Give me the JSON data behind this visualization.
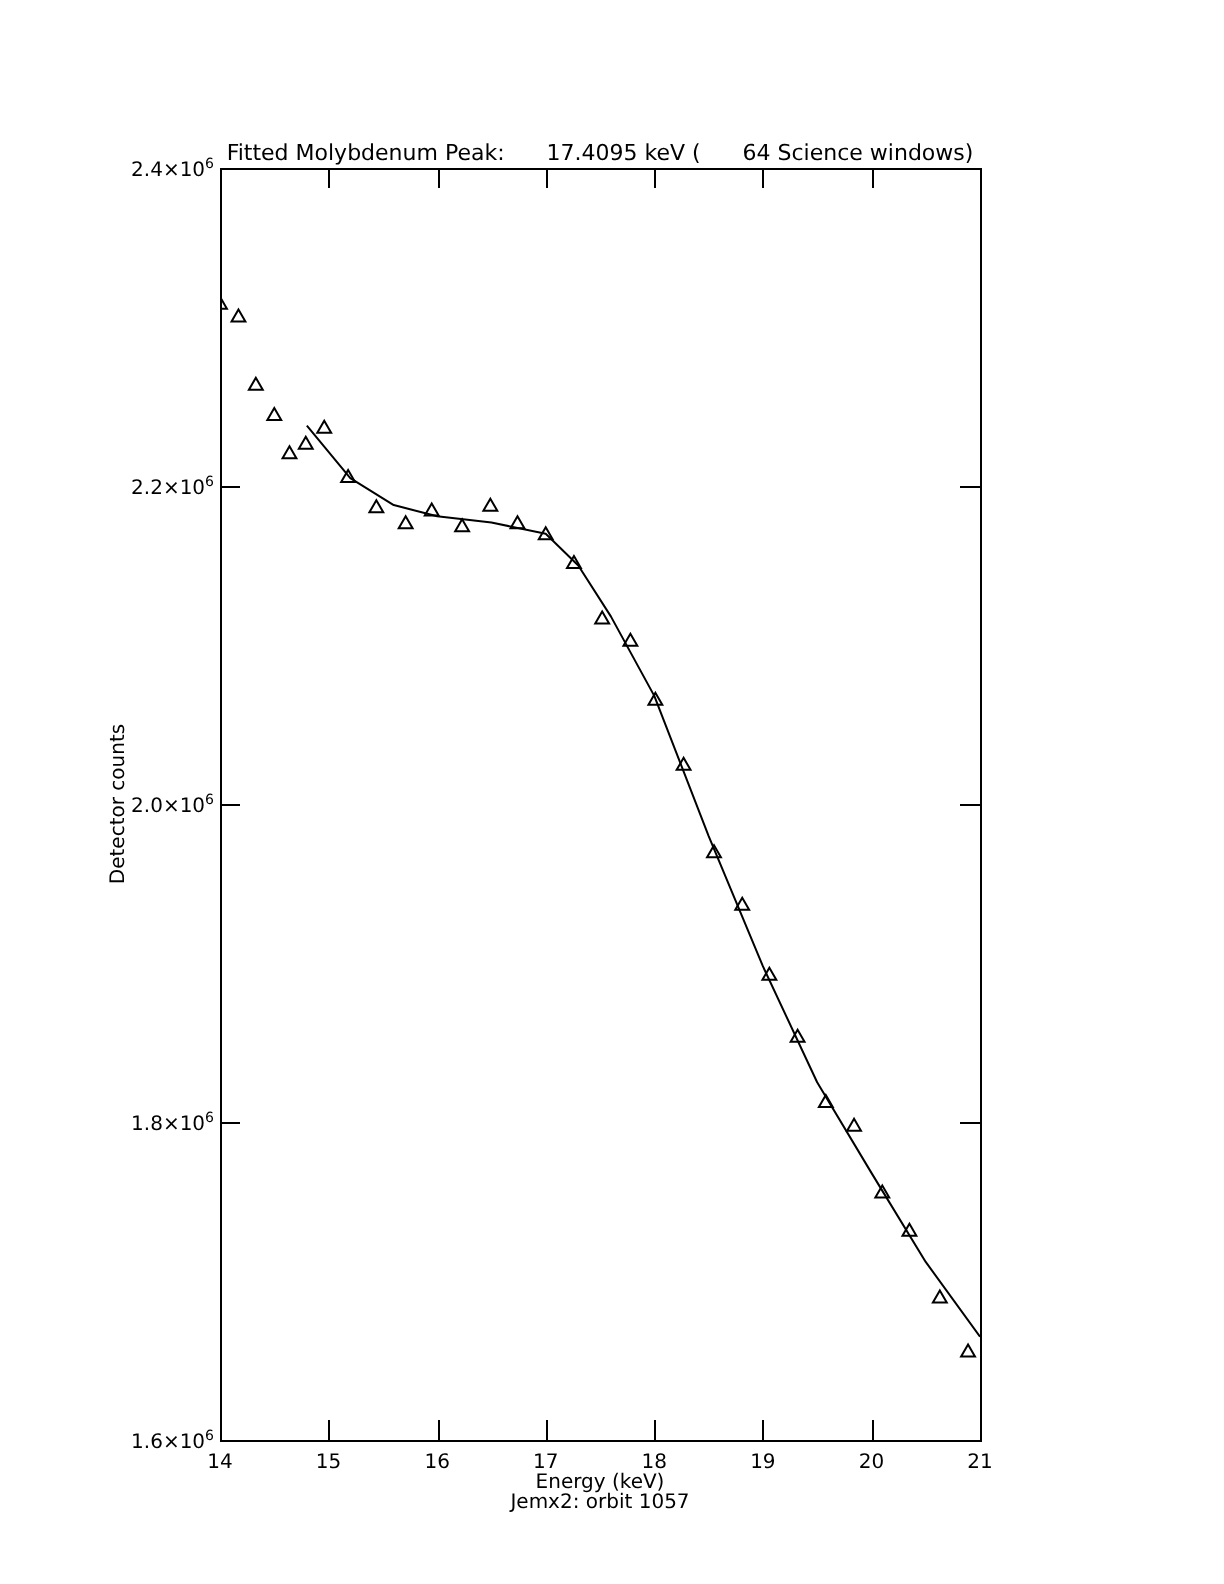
{
  "chart_data": {
    "type": "scatter",
    "title": "Fitted Molybdenum Peak:      17.4095 keV (      64 Science windows)",
    "xlabel": "Energy (keV)",
    "ylabel": "Detector counts",
    "annotations": [
      "Jemx2: orbit 1057"
    ],
    "xlim": [
      14,
      21
    ],
    "xticks": [
      14,
      15,
      16,
      17,
      18,
      19,
      20,
      21
    ],
    "ylim": [
      1600000,
      2400000
    ],
    "yticks": [
      {
        "value": 1600000,
        "label": "1.6×10$^{6}$"
      },
      {
        "value": 1800000,
        "label": "1.8×10$^{6}$"
      },
      {
        "value": 2000000,
        "label": "2.0×10$^{6}$"
      },
      {
        "value": 2200000,
        "label": "2.2×10$^{6}$"
      },
      {
        "value": 2400000,
        "label": "2.4×10$^{6}$"
      }
    ],
    "grid": false,
    "legend": false,
    "series": [
      {
        "type": "scatter",
        "color": "#000000",
        "marker": "triangle",
        "x": [
          14.0,
          14.17,
          14.33,
          14.5,
          14.64,
          14.79,
          14.96,
          15.18,
          15.44,
          15.71,
          15.95,
          16.23,
          16.49,
          16.74,
          17.0,
          17.26,
          17.52,
          17.78,
          18.01,
          18.27,
          18.55,
          18.81,
          19.06,
          19.32,
          19.58,
          19.84,
          20.1,
          20.35,
          20.63,
          20.89
        ],
        "values": [
          2314000,
          2306000,
          2263000,
          2244000,
          2220000,
          2226000,
          2236000,
          2205000,
          2186000,
          2176000,
          2184000,
          2174000,
          2187000,
          2176000,
          2169000,
          2151000,
          2116000,
          2102000,
          2065000,
          2024000,
          1969000,
          1936000,
          1892000,
          1853000,
          1812000,
          1797000,
          1755000,
          1731000,
          1689000,
          1655000
        ]
      },
      {
        "type": "line",
        "color": "#000000",
        "marker": "none",
        "line_style": "solid",
        "x": [
          14.8,
          15.2,
          15.6,
          16.0,
          16.5,
          17.0,
          17.3,
          17.6,
          18.0,
          18.5,
          19.0,
          19.5,
          20.0,
          20.5,
          21.0
        ],
        "values": [
          2238000,
          2205000,
          2188000,
          2181000,
          2177000,
          2170000,
          2150000,
          2118000,
          2068000,
          1980000,
          1898000,
          1825000,
          1768000,
          1712000,
          1665000
        ]
      }
    ]
  }
}
